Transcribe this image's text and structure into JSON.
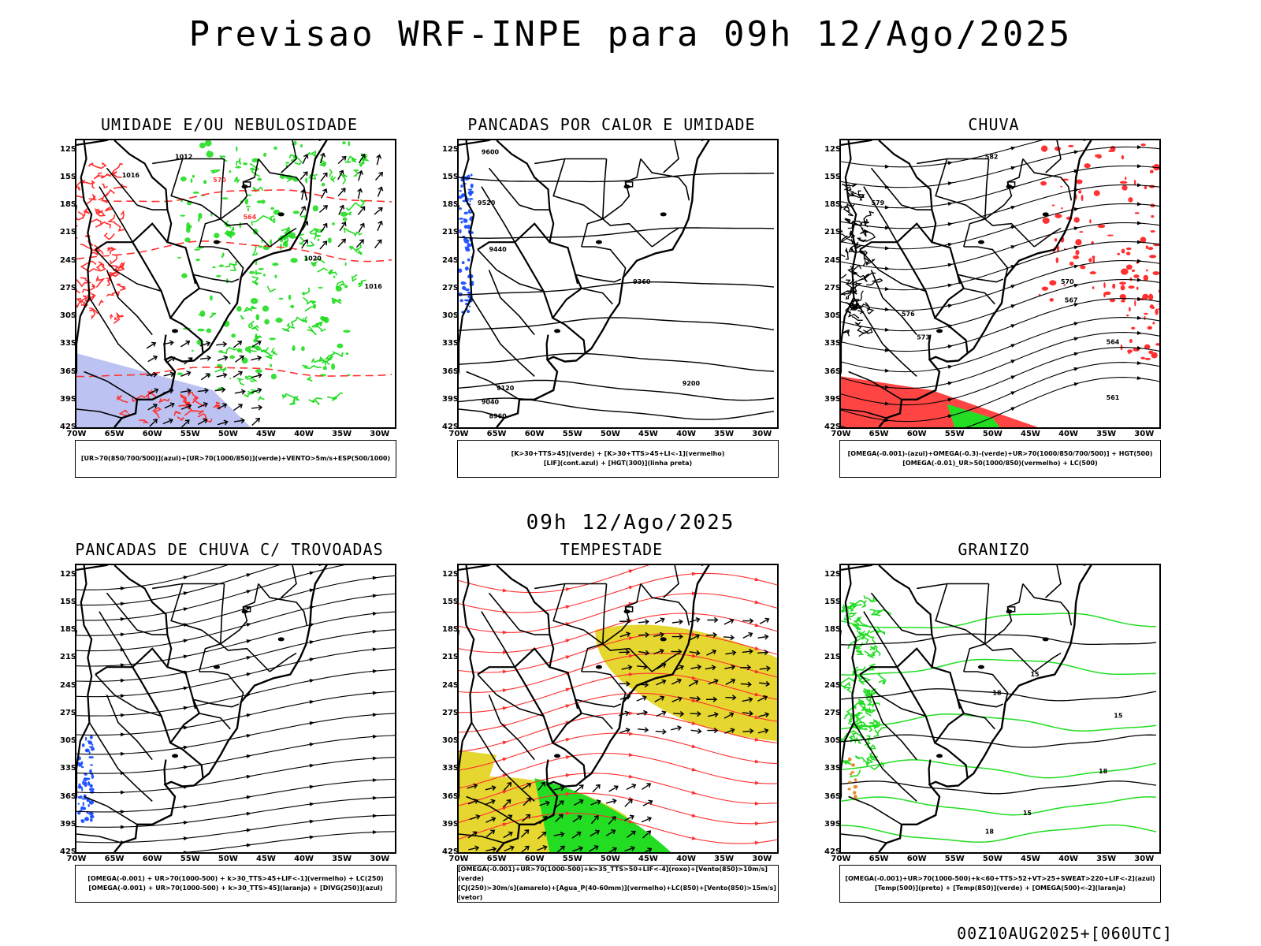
{
  "title": "Previsao WRF-INPE  para 09h 12/Ago/2025",
  "subtitle": "09h 12/Ago/2025",
  "footer": "00Z10AUG2025+[060UTC]",
  "lat_labels": [
    "12S",
    "15S",
    "18S",
    "21S",
    "24S",
    "27S",
    "30S",
    "33S",
    "36S",
    "39S",
    "42S"
  ],
  "lon_labels": [
    "70W",
    "65W",
    "60W",
    "55W",
    "50W",
    "45W",
    "40W",
    "35W",
    "30W"
  ],
  "colors": {
    "red": "#ff3030",
    "green": "#22dd22",
    "blue": "#2255ff",
    "yellow": "#e6d630",
    "lavender": "#b0b8f0"
  },
  "panels": [
    {
      "title": "UMIDADE E/OU NEBULOSIDADE",
      "legend": [
        "[UR>70(850/700/500)](azul)+[UR>70(1000/850)](verde)+VENTO>5m/s+ESP(500/1000)"
      ],
      "contour_labels": [
        "1012",
        "1016",
        "1020",
        "570",
        "564",
        "1016"
      ]
    },
    {
      "title": "PANCADAS POR CALOR E UMIDADE",
      "legend": [
        "[K>30+TTS>45](verde) + [K>30+TTS>45+LI<-1](vermelho)",
        "[LIF](cont.azul) + [HGT(300)](linha preta)"
      ],
      "contour_labels": [
        "9600",
        "9520",
        "9440",
        "9360",
        "9200",
        "9120",
        "9040",
        "8960"
      ]
    },
    {
      "title": "CHUVA",
      "legend": [
        "[OMEGA(-0.001)-(azul)+OMEGA(-0.3)-(verde)+UR>70(1000/850/700/500)] + HGT(500)",
        "[OMEGA(-0.01)_UR>50(1000/850)(vermelho) + LC(500)"
      ],
      "contour_labels": [
        "582",
        "579",
        "576",
        "573",
        "570",
        "567",
        "564",
        "561"
      ]
    },
    {
      "title": "PANCADAS DE CHUVA C/ TROVOADAS",
      "legend": [
        "[OMEGA(-0.001) + UR>70(1000-500) + k>30_TTS>45+LIF<-1](vermelho) + LC(250)",
        "[OMEGA(-0.001) + UR>70(1000-500) + k>30_TTS>45](laranja) + [DIVG(250)](azul)"
      ],
      "contour_labels": []
    },
    {
      "title": "TEMPESTADE",
      "legend": [
        "[OMEGA(-0.001)+UR>70(1000-500)+k>35_TTS>50+LIF<-4](roxo)+[Vento(850)>10m/s](verde)",
        "[CJ(250)>30m/s](amarelo)+[Agua_P(40-60mm)](vermelho)+LC(850)+[Vento(850)>15m/s](vetor)"
      ],
      "contour_labels": []
    },
    {
      "title": "GRANIZO",
      "legend": [
        "[OMEGA(-0.001)+UR>70(1000-500)+k<60+TTS>52+VT>25+SWEAT>220+LIF<-2](azul)",
        "[Temp(500)](preto) + [Temp(850)](verde) + [OMEGA(500)<-2](laranja)"
      ],
      "contour_labels": [
        "15",
        "18",
        "15",
        "18",
        "15",
        "18"
      ]
    }
  ]
}
